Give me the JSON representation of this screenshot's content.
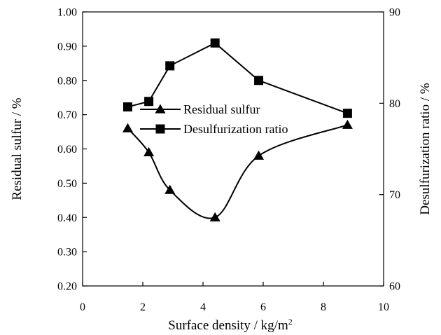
{
  "chart_data": {
    "type": "line",
    "xlabel": "Surface density / kg/m",
    "xlabel_superscript": "2",
    "ylabel": "Residual sulfur / %",
    "y2label": "Desulfurization ratio / %",
    "xlim": [
      0,
      10
    ],
    "ylim": [
      0.2,
      1.0
    ],
    "y2lim": [
      60,
      90
    ],
    "x_ticks": [
      "0",
      "2",
      "4",
      "6",
      "8",
      "10"
    ],
    "y_ticks": [
      "0.20",
      "0.30",
      "0.40",
      "0.50",
      "0.60",
      "0.70",
      "0.80",
      "0.90",
      "1.00"
    ],
    "y2_ticks": [
      "60",
      "70",
      "80",
      "90"
    ],
    "grid": false,
    "legend_position": "center-left",
    "series": [
      {
        "name": "Residual sulfur",
        "axis": "left",
        "marker": "triangle",
        "smooth": true,
        "x": [
          1.5,
          2.2,
          2.9,
          4.4,
          5.85,
          8.8
        ],
        "y": [
          0.66,
          0.59,
          0.48,
          0.4,
          0.58,
          0.67
        ]
      },
      {
        "name": "Desulfurization ratio",
        "axis": "right",
        "marker": "square",
        "smooth": false,
        "x": [
          1.5,
          2.2,
          2.9,
          4.4,
          5.85,
          8.8
        ],
        "y": [
          79.6,
          80.2,
          84.1,
          86.6,
          82.5,
          78.9
        ]
      }
    ]
  }
}
